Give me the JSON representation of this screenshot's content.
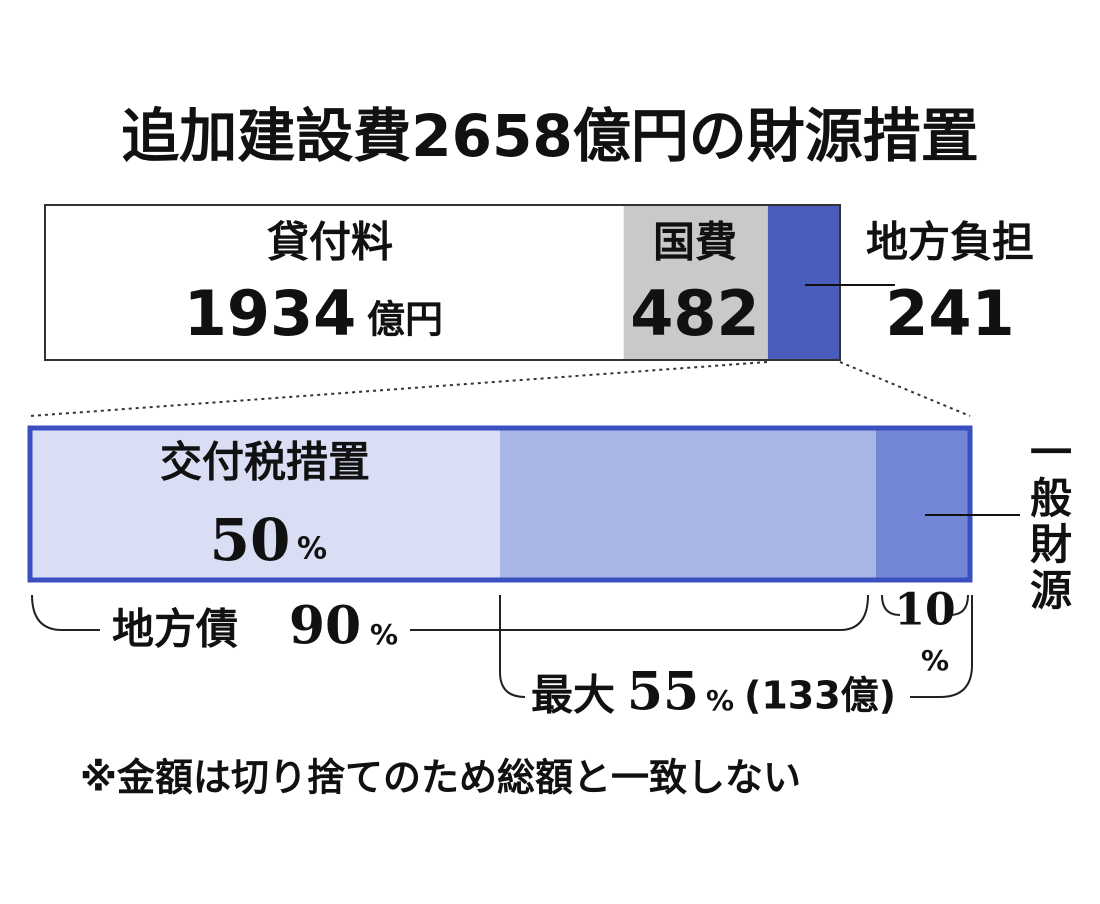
{
  "title": "追加建設費2658億円の財源措置",
  "top_bar": {
    "segments": [
      {
        "label": "貸付料",
        "value": 1934,
        "unit": "億円",
        "color": "#ffffff"
      },
      {
        "label": "国費",
        "value": 482,
        "color": "#c9c9c9"
      },
      {
        "label": "地方負担",
        "value": 241,
        "color": "#4a5cbc"
      }
    ]
  },
  "percent_sign": "%",
  "bottom_bar": {
    "kofuzei": {
      "label": "交付税措置",
      "value": 50,
      "color": "#d9def4"
    },
    "chihousai": {
      "label": "地方債",
      "value": 90,
      "color": "#a8b6e6"
    },
    "ippan": {
      "label": "一般財源",
      "value": 10,
      "color": "#7387d6"
    },
    "saidai": {
      "label": "最大",
      "value": 55,
      "note": "(133億)"
    }
  },
  "footnote": "※金額は切り捨てのため総額と一致しない"
}
